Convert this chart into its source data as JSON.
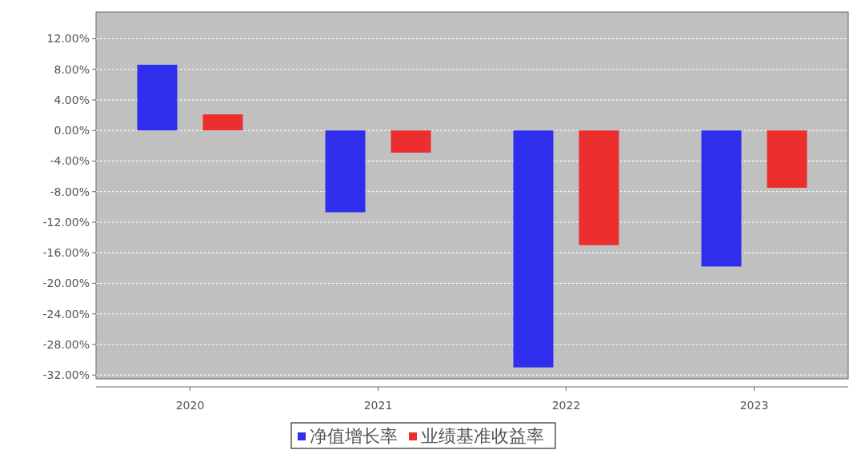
{
  "chart_data": {
    "type": "bar",
    "categories": [
      "2020",
      "2021",
      "2022",
      "2023"
    ],
    "series": [
      {
        "name": "净值增长率",
        "color": "#2e2eec",
        "values": [
          8.6,
          -10.7,
          -31.0,
          -17.8
        ]
      },
      {
        "name": "业绩基准收益率",
        "color": "#ec2e2e",
        "values": [
          2.1,
          -2.9,
          -15.0,
          -7.5
        ]
      }
    ],
    "ylim": [
      -32.5,
      15.5
    ],
    "yticks": [
      {
        "value": -32,
        "label": "-32.00%"
      },
      {
        "value": -28,
        "label": "-28.00%"
      },
      {
        "value": -24,
        "label": "-24.00%"
      },
      {
        "value": -20,
        "label": "-20.00%"
      },
      {
        "value": -16,
        "label": "-16.00%"
      },
      {
        "value": -12,
        "label": "-12.00%"
      },
      {
        "value": -8,
        "label": "-8.00%"
      },
      {
        "value": -4,
        "label": "-4.00%"
      },
      {
        "value": 0,
        "label": "0.00%"
      },
      {
        "value": 4,
        "label": "4.00%"
      },
      {
        "value": 8,
        "label": "8.00%"
      },
      {
        "value": 12,
        "label": "12.00%"
      }
    ],
    "grid": "y",
    "legend": "bottom"
  }
}
